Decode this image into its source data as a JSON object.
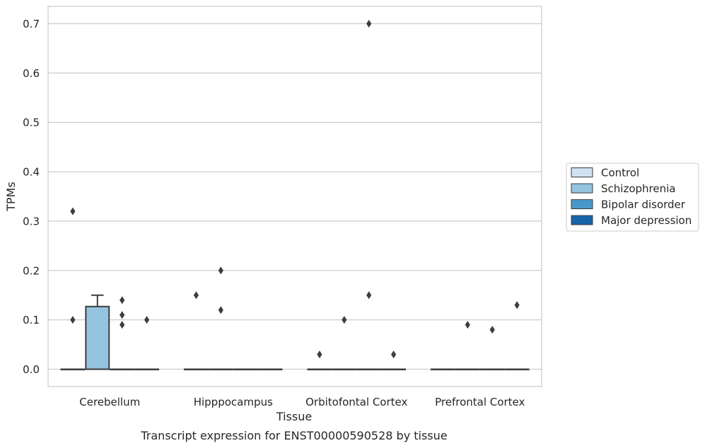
{
  "chart_data": {
    "type": "box",
    "title": "",
    "caption": "Transcript expression for ENST00000590528 by tissue",
    "xlabel": "Tissue",
    "ylabel": "TPMs",
    "ylim": [
      -0.035,
      0.735
    ],
    "yticks": [
      0.0,
      0.1,
      0.2,
      0.3,
      0.4,
      0.5,
      0.6,
      0.7
    ],
    "ytick_labels": [
      "0.0",
      "0.1",
      "0.2",
      "0.3",
      "0.4",
      "0.5",
      "0.6",
      "0.7"
    ],
    "grid": "horizontal",
    "legend_position": "right",
    "categories": [
      "Cerebellum",
      "Hipppocampus",
      "Orbitofontal Cortex",
      "Prefrontal Cortex"
    ],
    "series": [
      {
        "name": "Control",
        "color": "#d0e1f2",
        "boxes": [
          {
            "q1": 0.0,
            "median": 0.0,
            "q3": 0.0,
            "whisker_low": 0.0,
            "whisker_high": 0.0,
            "outliers": [
              0.32,
              0.1
            ]
          },
          {
            "q1": 0.0,
            "median": 0.0,
            "q3": 0.0,
            "whisker_low": 0.0,
            "whisker_high": 0.0,
            "outliers": [
              0.15
            ]
          },
          {
            "q1": 0.0,
            "median": 0.0,
            "q3": 0.0,
            "whisker_low": 0.0,
            "whisker_high": 0.0,
            "outliers": [
              0.03
            ]
          },
          {
            "q1": 0.0,
            "median": 0.0,
            "q3": 0.0,
            "whisker_low": 0.0,
            "whisker_high": 0.0,
            "outliers": []
          }
        ]
      },
      {
        "name": "Schizophrenia",
        "color": "#94c4df",
        "boxes": [
          {
            "q1": 0.0,
            "median": 0.0,
            "q3": 0.127,
            "whisker_low": 0.0,
            "whisker_high": 0.15,
            "outliers": []
          },
          {
            "q1": 0.0,
            "median": 0.0,
            "q3": 0.0,
            "whisker_low": 0.0,
            "whisker_high": 0.0,
            "outliers": [
              0.2,
              0.12
            ]
          },
          {
            "q1": 0.0,
            "median": 0.0,
            "q3": 0.0,
            "whisker_low": 0.0,
            "whisker_high": 0.0,
            "outliers": [
              0.1
            ]
          },
          {
            "q1": 0.0,
            "median": 0.0,
            "q3": 0.0,
            "whisker_low": 0.0,
            "whisker_high": 0.0,
            "outliers": [
              0.09
            ]
          }
        ]
      },
      {
        "name": "Bipolar disorder",
        "color": "#4a98c9",
        "boxes": [
          {
            "q1": 0.0,
            "median": 0.0,
            "q3": 0.0,
            "whisker_low": 0.0,
            "whisker_high": 0.0,
            "outliers": [
              0.14,
              0.11,
              0.09
            ]
          },
          {
            "q1": 0.0,
            "median": 0.0,
            "q3": 0.0,
            "whisker_low": 0.0,
            "whisker_high": 0.0,
            "outliers": []
          },
          {
            "q1": 0.0,
            "median": 0.0,
            "q3": 0.0,
            "whisker_low": 0.0,
            "whisker_high": 0.0,
            "outliers": [
              0.7,
              0.15
            ]
          },
          {
            "q1": 0.0,
            "median": 0.0,
            "q3": 0.0,
            "whisker_low": 0.0,
            "whisker_high": 0.0,
            "outliers": [
              0.08
            ]
          }
        ]
      },
      {
        "name": "Major depression",
        "color": "#1764ab",
        "boxes": [
          {
            "q1": 0.0,
            "median": 0.0,
            "q3": 0.0,
            "whisker_low": 0.0,
            "whisker_high": 0.0,
            "outliers": [
              0.1
            ]
          },
          {
            "q1": 0.0,
            "median": 0.0,
            "q3": 0.0,
            "whisker_low": 0.0,
            "whisker_high": 0.0,
            "outliers": []
          },
          {
            "q1": 0.0,
            "median": 0.0,
            "q3": 0.0,
            "whisker_low": 0.0,
            "whisker_high": 0.0,
            "outliers": [
              0.03
            ]
          },
          {
            "q1": 0.0,
            "median": 0.0,
            "q3": 0.0,
            "whisker_low": 0.0,
            "whisker_high": 0.0,
            "outliers": [
              0.13
            ]
          }
        ]
      }
    ]
  }
}
